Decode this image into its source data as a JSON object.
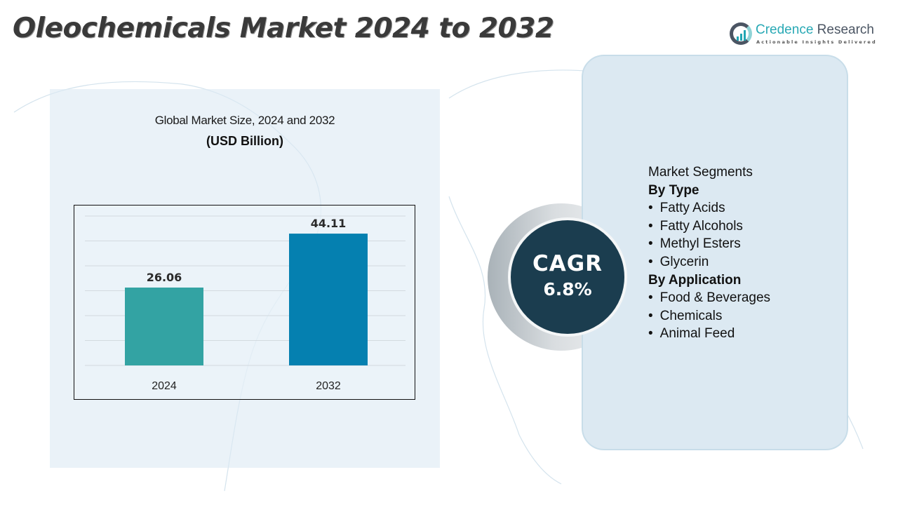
{
  "title": "Oleochemicals Market 2024 to 2032",
  "logo": {
    "name_part1": "Credence",
    "name_part2": " Research",
    "tagline": "Actionable Insights Delivered"
  },
  "colors": {
    "bar_2024": "#33a3a3",
    "bar_2032": "#0580b0",
    "cagr_circle": "#1b3d4f",
    "panel": "#dce9f2"
  },
  "chart_data": {
    "type": "bar",
    "title": "Global Market Size, 2024 and 2032",
    "subtitle": "(USD Billion)",
    "categories": [
      "2024",
      "2032"
    ],
    "values": [
      26.06,
      44.11
    ],
    "value_labels": [
      "26.06",
      "44.11"
    ],
    "ylim": [
      0,
      50
    ],
    "grid": true,
    "legend": "none"
  },
  "cagr": {
    "label": "CAGR",
    "value": "6.8%"
  },
  "segments": {
    "heading": "Market Segments",
    "groups": [
      {
        "title": "By Type",
        "items": [
          "Fatty Acids",
          "Fatty Alcohols",
          "Methyl Esters",
          "Glycerin"
        ]
      },
      {
        "title": "By Application",
        "items": [
          "Food & Beverages",
          "Chemicals",
          "Animal Feed"
        ]
      }
    ]
  }
}
